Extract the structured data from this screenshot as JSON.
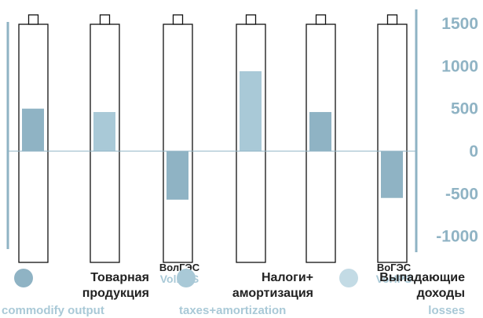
{
  "chart_data": {
    "type": "bar",
    "categories": [
      "",
      "",
      "",
      "",
      "",
      ""
    ],
    "category_labels": [
      {
        "ru": "",
        "en": ""
      },
      {
        "ru": "",
        "en": ""
      },
      {
        "ru": "ВолГЭС",
        "en": "VolHPS"
      },
      {
        "ru": "",
        "en": ""
      },
      {
        "ru": "",
        "en": ""
      },
      {
        "ru": "ВоГЭС",
        "en": "VoHPS"
      }
    ],
    "values": [
      500,
      460,
      -570,
      940,
      460,
      -550
    ],
    "series_index": [
      0,
      1,
      2,
      1,
      0,
      2
    ],
    "series": [
      {
        "name": "Товарная продукция",
        "name_lines": [
          "Товарная",
          "продукция"
        ],
        "name_en": "commodify output",
        "color": "#8fb3c4"
      },
      {
        "name": "Налоги+ амортизация",
        "name_lines": [
          "Налоги+",
          "амортизация"
        ],
        "name_en": "taxes+amortization",
        "color": "#a9c9d7"
      },
      {
        "name": "Выпадающие доходы",
        "name_lines": [
          "Выпадающие",
          "доходы"
        ],
        "name_en": "losses",
        "color": "#c3dbe5"
      }
    ],
    "bar_colors": [
      "#8fb3c4",
      "#a9c9d7",
      "#8fb3c4",
      "#a9c9d7",
      "#8fb3c4",
      "#8fb3c4"
    ],
    "yticks": [
      "1500",
      "1000",
      "500",
      "0",
      "-500",
      "-1000"
    ],
    "ytick_values": [
      1500,
      1000,
      500,
      0,
      -500,
      -1000
    ],
    "ylim": [
      -1100,
      1600
    ],
    "title": "",
    "xlabel": "",
    "ylabel": "",
    "grid": false,
    "legend": "bottom",
    "axis_color": "#8fb3c4",
    "label_en_color": "#a9c9d7",
    "outline_color": "#111111"
  }
}
